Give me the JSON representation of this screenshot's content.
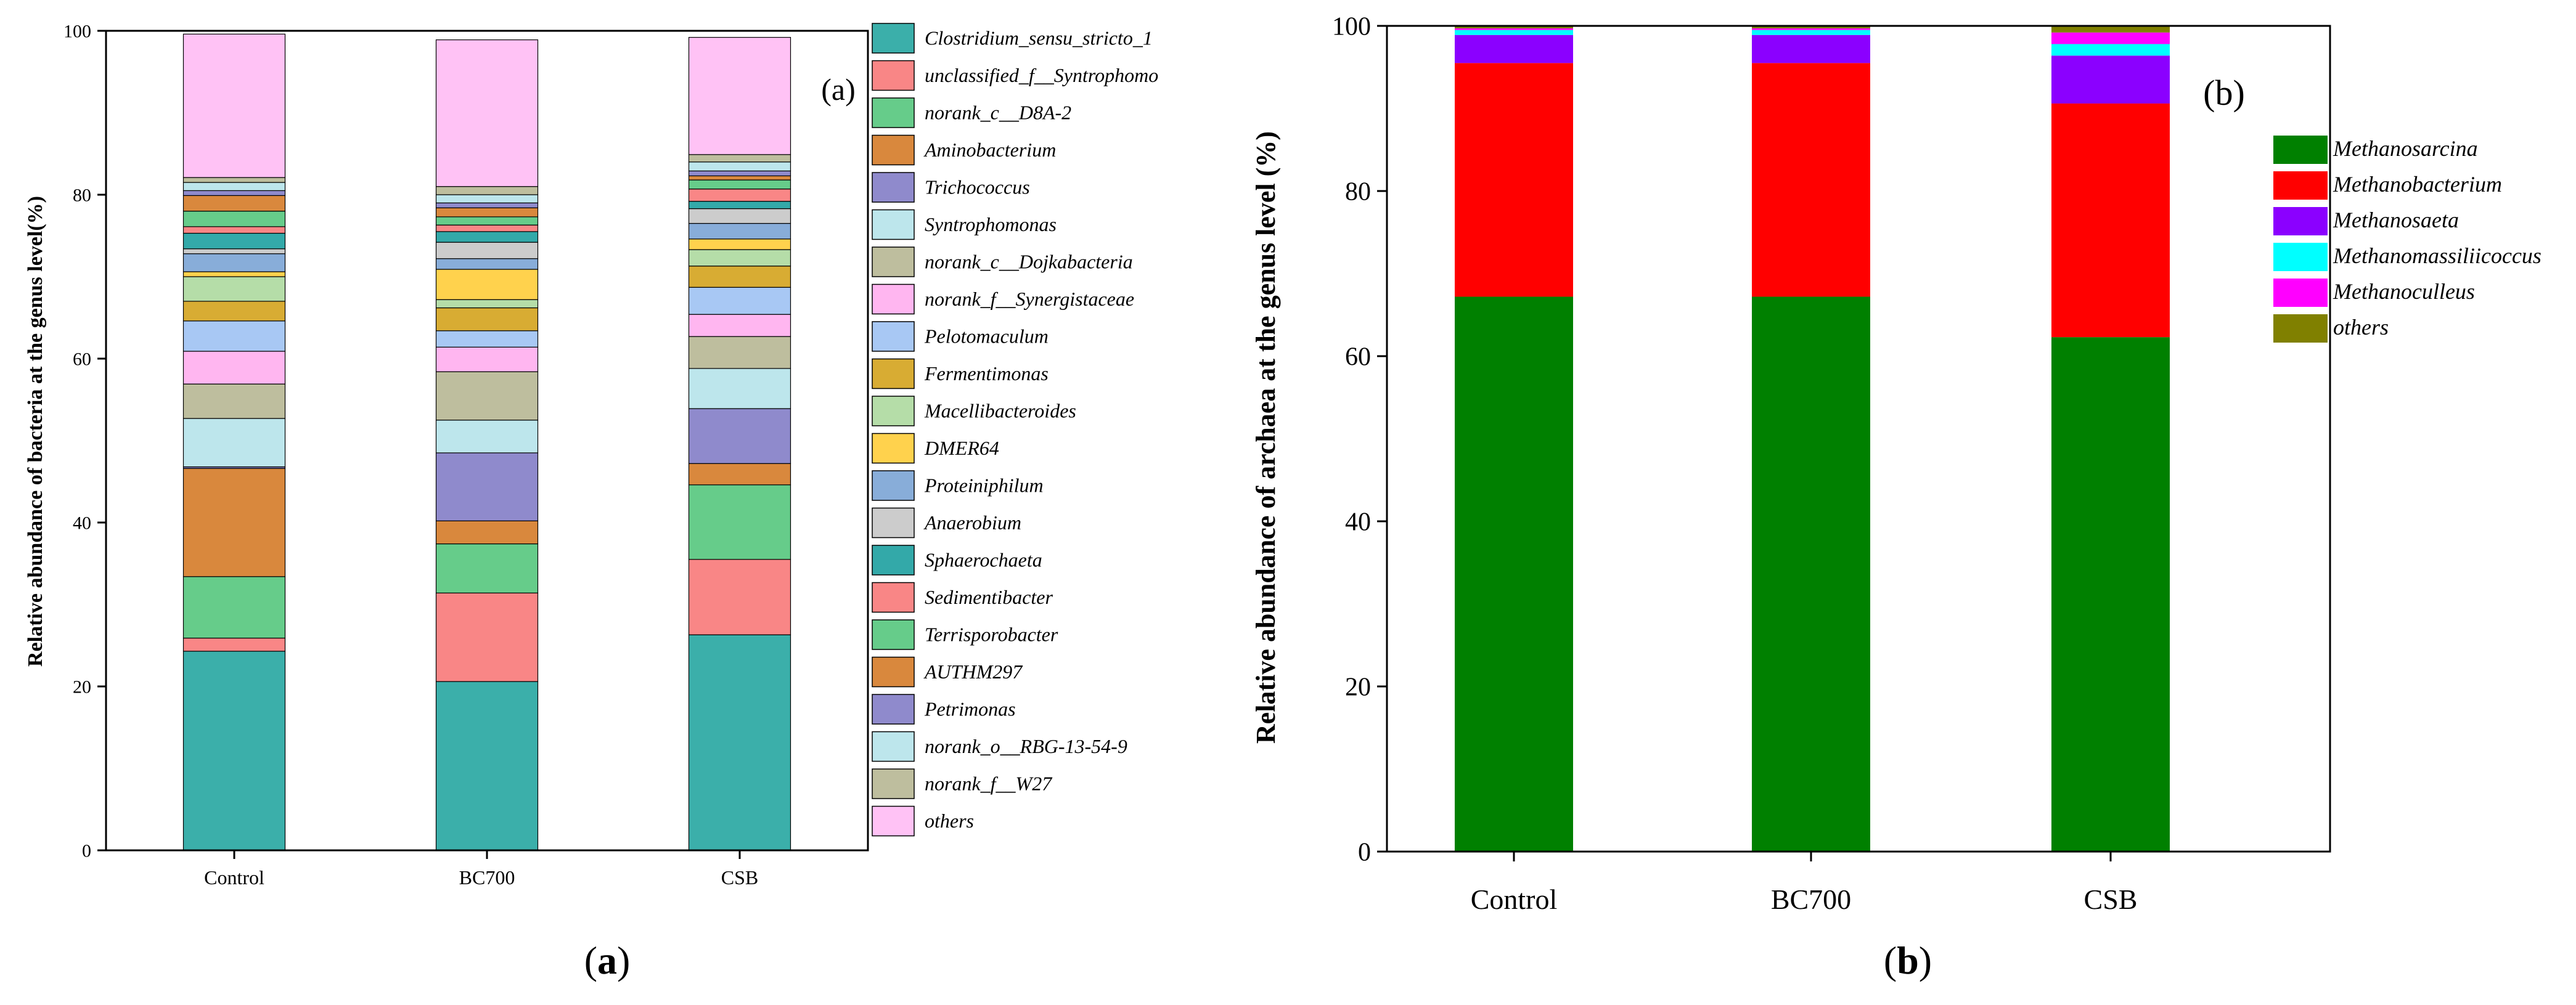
{
  "panels": [
    {
      "id": "a",
      "caption": "(a)",
      "caption_letter": "a",
      "tag": "(a)",
      "chart_data": {
        "type": "bar",
        "stacked": true,
        "ylabel": "Relative abundance of bacteria at the genus level(%)",
        "xlabel": "",
        "ylim": [
          0,
          100
        ],
        "yticks": [
          "0",
          "20",
          "40",
          "60",
          "80",
          "100"
        ],
        "categories": [
          "Control",
          "BC700",
          "CSB"
        ],
        "legend_position": "right",
        "series": [
          {
            "name": "Clostridium_sensu_stricto_1",
            "color": "#3BAFAA",
            "values": [
              24.3,
              20.6,
              26.3
            ]
          },
          {
            "name": "unclassified_f__Syntrophomo",
            "color": "#F98686",
            "values": [
              1.6,
              10.8,
              9.2
            ]
          },
          {
            "name": "norank_c__D8A-2",
            "color": "#66CC8A",
            "values": [
              7.5,
              6.0,
              9.1
            ]
          },
          {
            "name": "Aminobacterium",
            "color": "#D9883D",
            "values": [
              13.2,
              2.8,
              2.6
            ]
          },
          {
            "name": "Trichococcus",
            "color": "#8F8ACC",
            "values": [
              0.2,
              8.3,
              6.7
            ]
          },
          {
            "name": "Syntrophomonas",
            "color": "#BDE6EC",
            "values": [
              5.9,
              4.0,
              4.9
            ]
          },
          {
            "name": "norank_c__Dojkabacteria",
            "color": "#BEBE9E",
            "values": [
              4.2,
              5.9,
              3.9
            ]
          },
          {
            "name": "norank_f__Synergistaceae",
            "color": "#FFB6F0",
            "values": [
              4.0,
              3.0,
              2.7
            ]
          },
          {
            "name": "Pelotomaculum",
            "color": "#A8C8F4",
            "values": [
              3.7,
              2.0,
              3.3
            ]
          },
          {
            "name": "Fermentimonas",
            "color": "#D8AC33",
            "values": [
              2.4,
              2.8,
              2.6
            ]
          },
          {
            "name": "Macellibacteroides",
            "color": "#B5DDA8",
            "values": [
              3.0,
              1.0,
              2.0
            ]
          },
          {
            "name": "DMER64",
            "color": "#FFD24D",
            "values": [
              0.6,
              3.7,
              1.3
            ]
          },
          {
            "name": "Proteiniphilum",
            "color": "#88ADD9",
            "values": [
              2.2,
              1.3,
              1.9
            ]
          },
          {
            "name": "Anaerobium",
            "color": "#CCCCCC",
            "values": [
              0.6,
              2.0,
              1.8
            ]
          },
          {
            "name": "Sphaerochaeta",
            "color": "#33A9A9",
            "values": [
              1.9,
              1.3,
              0.9
            ]
          },
          {
            "name": "Sedimentibacter",
            "color": "#F98686",
            "values": [
              0.8,
              0.8,
              1.5
            ]
          },
          {
            "name": "Terrisporobacter",
            "color": "#66CC8A",
            "values": [
              1.9,
              1.0,
              1.1
            ]
          },
          {
            "name": "AUTHM297",
            "color": "#D9883D",
            "values": [
              1.9,
              1.1,
              0.5
            ]
          },
          {
            "name": "Petrimonas",
            "color": "#8F8ACC",
            "values": [
              0.6,
              0.6,
              0.6
            ]
          },
          {
            "name": "norank_o__RBG-13-54-9",
            "color": "#BDE6EC",
            "values": [
              1.0,
              1.0,
              1.1
            ]
          },
          {
            "name": "norank_f__W27",
            "color": "#BEBE9E",
            "values": [
              0.6,
              1.0,
              0.9
            ]
          },
          {
            "name": "others",
            "color": "#FFC2F5",
            "values": [
              17.5,
              17.9,
              14.3
            ]
          }
        ]
      }
    },
    {
      "id": "b",
      "caption": "(b)",
      "caption_letter": "b",
      "tag": "(b)",
      "chart_data": {
        "type": "bar",
        "stacked": true,
        "ylabel": "Relative abundance of archaea at the genus level (%)",
        "xlabel": "",
        "ylim": [
          0,
          100
        ],
        "yticks": [
          "0",
          "20",
          "40",
          "60",
          "80",
          "100"
        ],
        "categories": [
          "Control",
          "BC700",
          "CSB"
        ],
        "legend_position": "right",
        "series": [
          {
            "name": "Methanosarcina",
            "color": "#008000",
            "values": [
              67.2,
              67.2,
              62.3
            ]
          },
          {
            "name": "Methanobacterium",
            "color": "#FF0000",
            "values": [
              28.3,
              28.3,
              28.3
            ]
          },
          {
            "name": "Methanosaeta",
            "color": "#8B00FF",
            "values": [
              3.4,
              3.4,
              5.8
            ]
          },
          {
            "name": "Methanomassiliicoccus",
            "color": "#00FFFF",
            "values": [
              0.6,
              0.6,
              1.4
            ]
          },
          {
            "name": "Methanoculleus",
            "color": "#FF00FF",
            "values": [
              0.2,
              0.2,
              1.4
            ]
          },
          {
            "name": "others",
            "color": "#808000",
            "values": [
              0.3,
              0.3,
              0.8
            ]
          }
        ]
      }
    }
  ]
}
